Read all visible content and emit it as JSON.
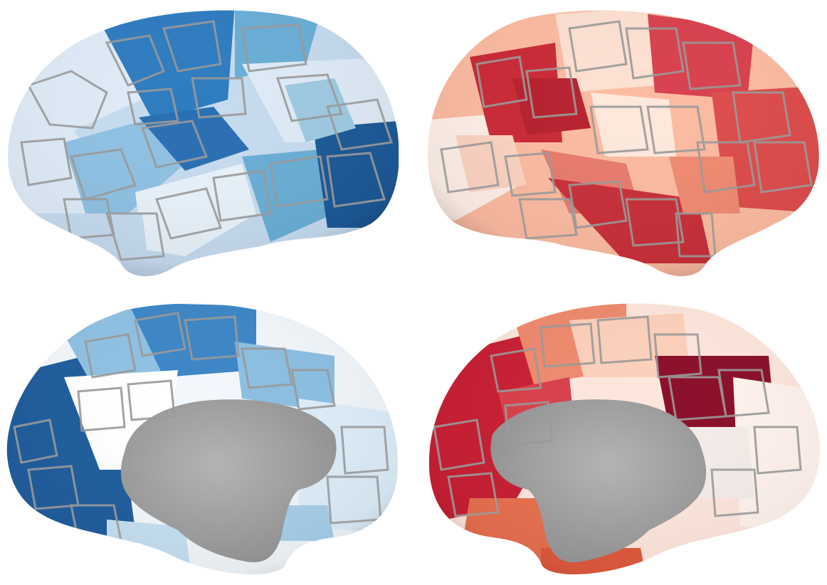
{
  "figure": {
    "panels": [
      {
        "id": "left-lateral",
        "view": "lateral",
        "colormap": "blues",
        "palette": [
          "#f7fbff",
          "#deebf7",
          "#c6dbef",
          "#9ecae1",
          "#6baed6",
          "#4292c6",
          "#2171b5",
          "#084594"
        ]
      },
      {
        "id": "right-lateral",
        "view": "lateral",
        "colormap": "reds",
        "palette": [
          "#fff5f0",
          "#fee0d2",
          "#fcbba1",
          "#fc9272",
          "#fb6a4a",
          "#ef3b2c",
          "#cb181d",
          "#99000d"
        ]
      },
      {
        "id": "left-medial",
        "view": "medial",
        "colormap": "blues",
        "palette": [
          "#f7fbff",
          "#deebf7",
          "#c6dbef",
          "#9ecae1",
          "#6baed6",
          "#4292c6",
          "#2171b5",
          "#084594"
        ]
      },
      {
        "id": "right-medial",
        "view": "medial",
        "colormap": "reds",
        "palette": [
          "#fff5f0",
          "#fee0d2",
          "#fcbba1",
          "#fc9272",
          "#fb6a4a",
          "#ef3b2c",
          "#cb181d",
          "#99000d"
        ]
      }
    ],
    "border_color": "#9a9a9a",
    "medial_wall_color": "#a6a6a6"
  }
}
